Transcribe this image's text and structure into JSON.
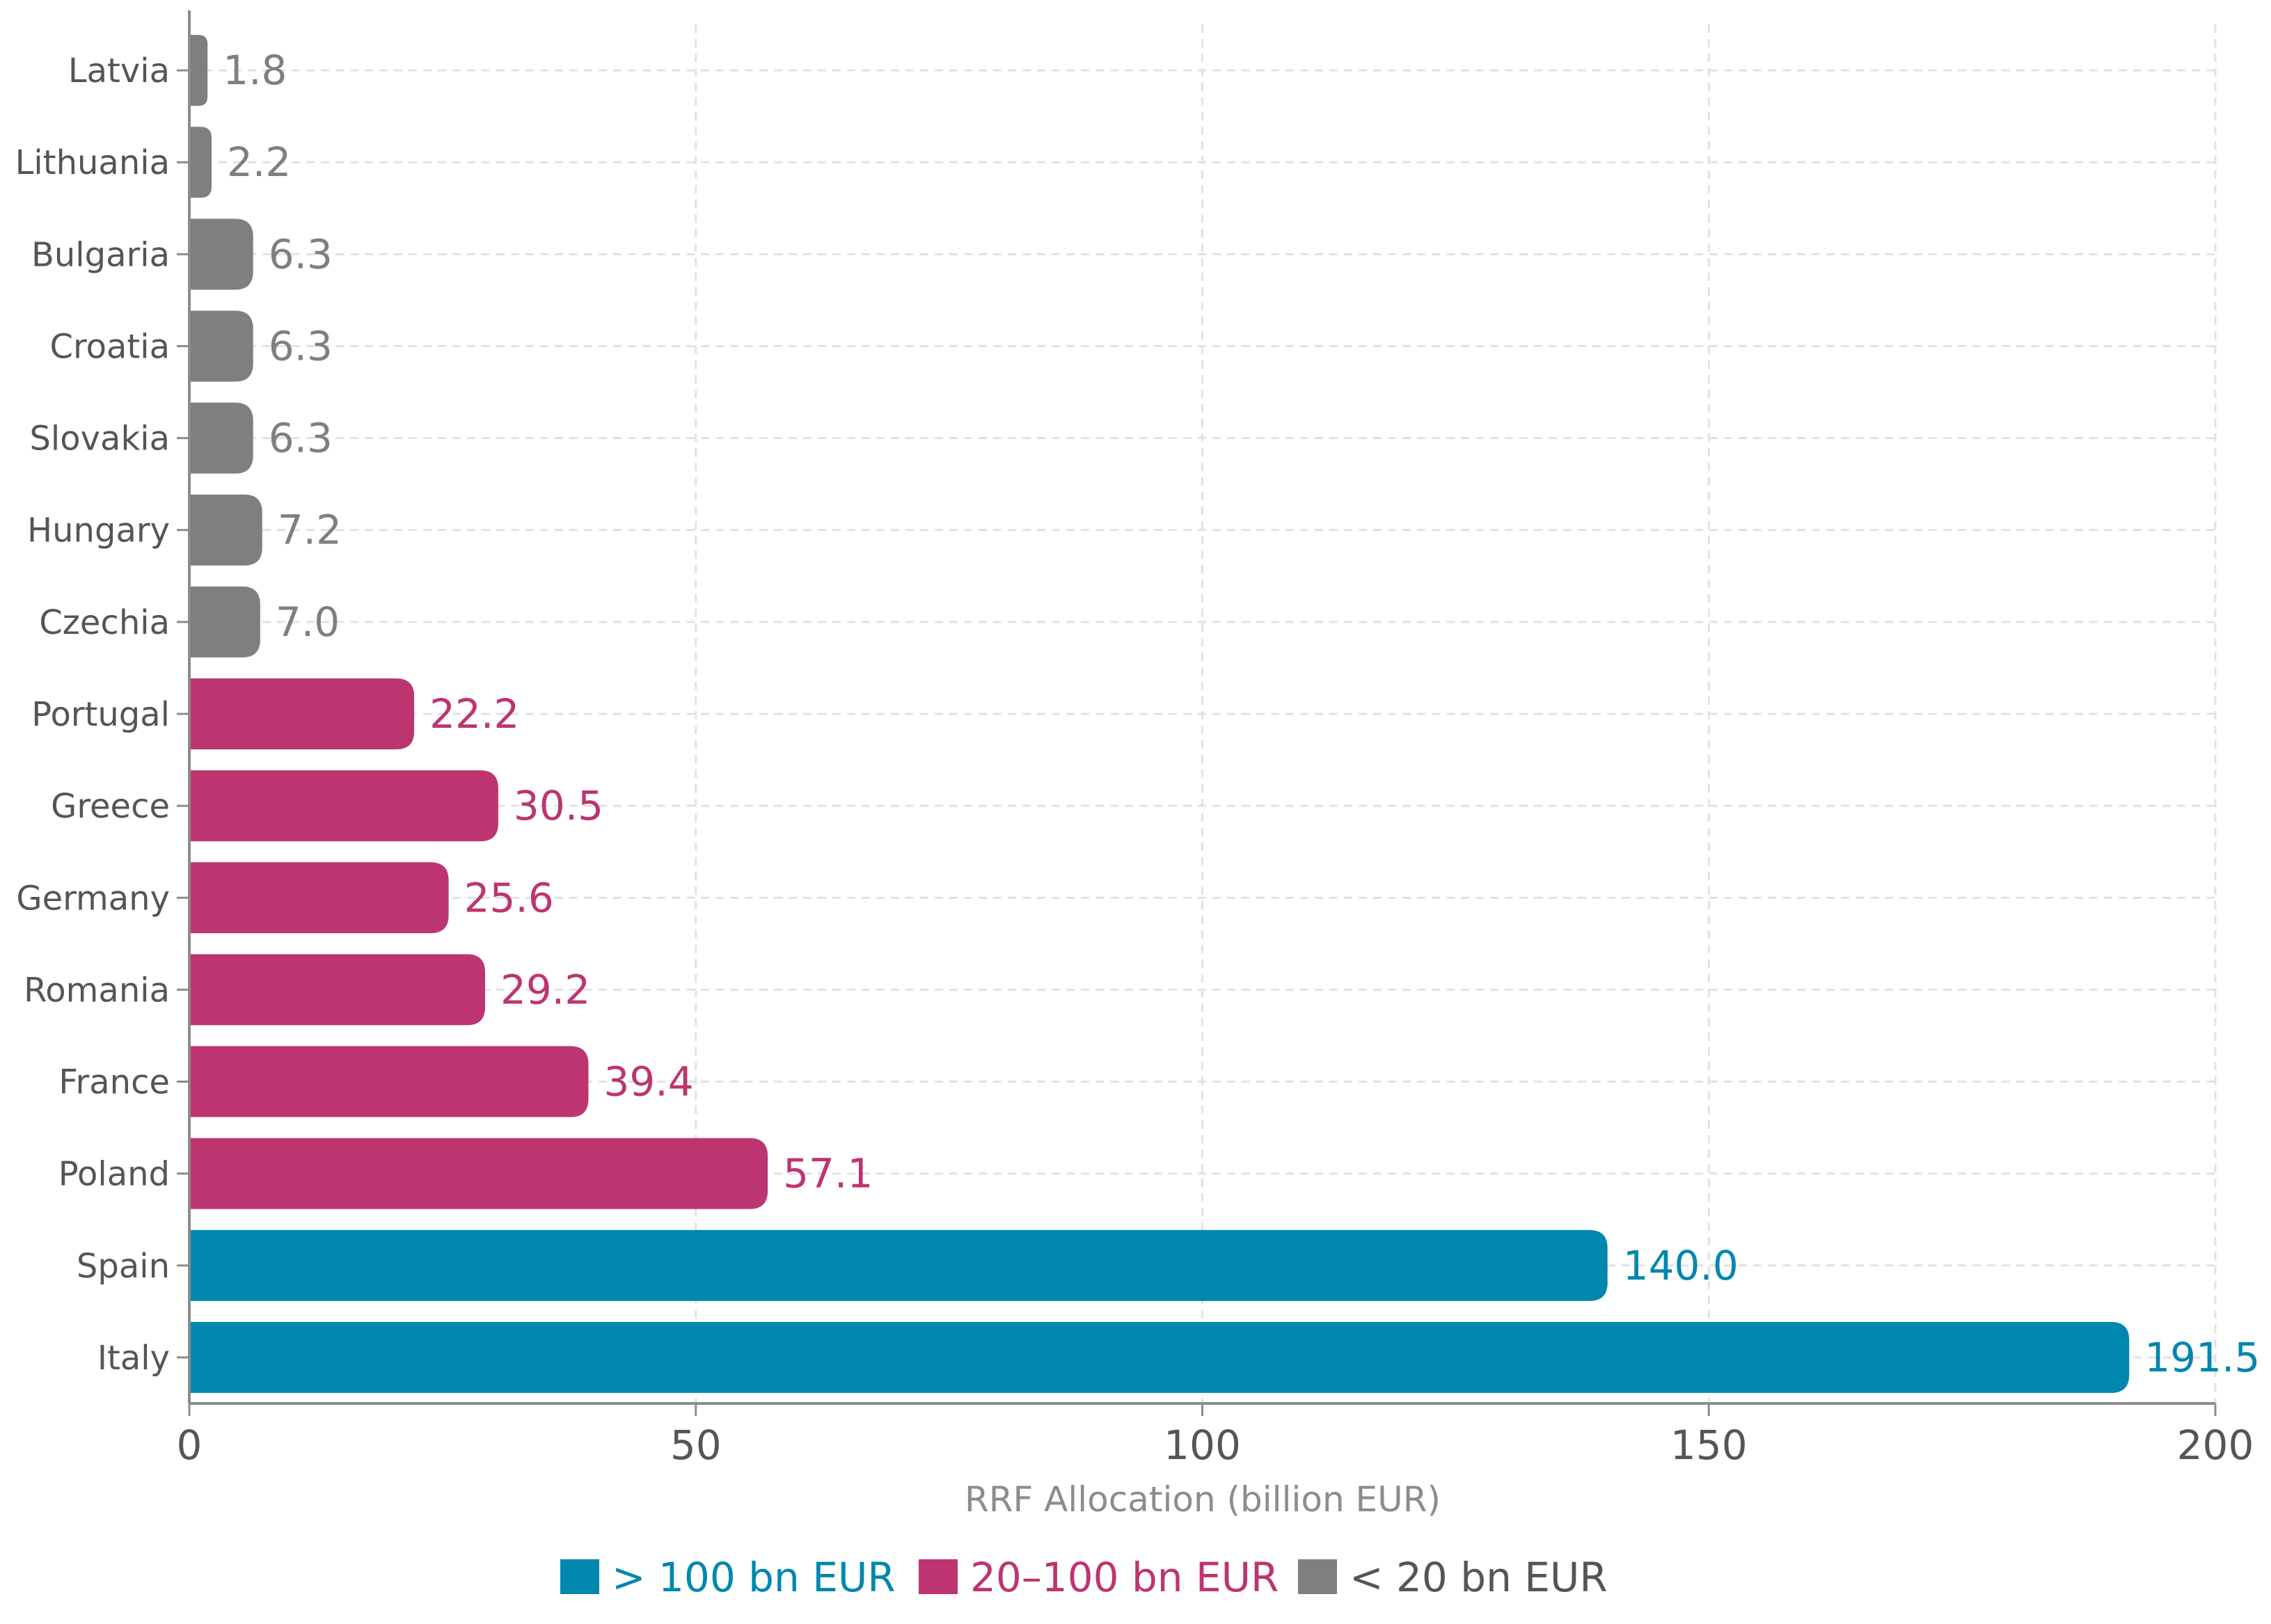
{
  "chart_data": {
    "type": "bar",
    "orientation": "horizontal",
    "title": "",
    "xlabel": "RRF Allocation (billion EUR)",
    "ylabel": "",
    "xlim": [
      0,
      200
    ],
    "x_ticks": [
      "0",
      "50",
      "100",
      "150",
      "200"
    ],
    "grid": true,
    "legend_position": "bottom",
    "categories": [
      "Latvia",
      "Lithuania",
      "Bulgaria",
      "Croatia",
      "Slovakia",
      "Hungary",
      "Czechia",
      "Portugal",
      "Greece",
      "Germany",
      "Romania",
      "France",
      "Poland",
      "Spain",
      "Italy"
    ],
    "values": [
      1.8,
      2.2,
      6.3,
      6.3,
      6.3,
      7.2,
      7.0,
      22.2,
      30.5,
      25.6,
      29.2,
      39.4,
      57.1,
      140.0,
      191.5
    ],
    "value_labels": [
      "1.8",
      "2.2",
      "6.3",
      "6.3",
      "6.3",
      "7.2",
      "7.0",
      "22.2",
      "30.5",
      "25.6",
      "29.2",
      "39.4",
      "57.1",
      "140.0",
      "191.5"
    ],
    "groups": [
      "low",
      "low",
      "low",
      "low",
      "low",
      "low",
      "low",
      "mid",
      "mid",
      "mid",
      "mid",
      "mid",
      "mid",
      "high",
      "high"
    ],
    "group_colors": {
      "high": "#0087AD",
      "mid": "#BC3570",
      "low": "#7F7F7F"
    },
    "legend": [
      {
        "group": "high",
        "label": "> 100 bn EUR"
      },
      {
        "group": "mid",
        "label": "20–100 bn EUR"
      },
      {
        "group": "low",
        "label": "<  20 bn EUR"
      }
    ],
    "colors": {
      "grid": "#E2E2E2",
      "axis": "#8C8C8C",
      "tick_text": "#555555",
      "axis_title": "#8C8C8C"
    }
  }
}
